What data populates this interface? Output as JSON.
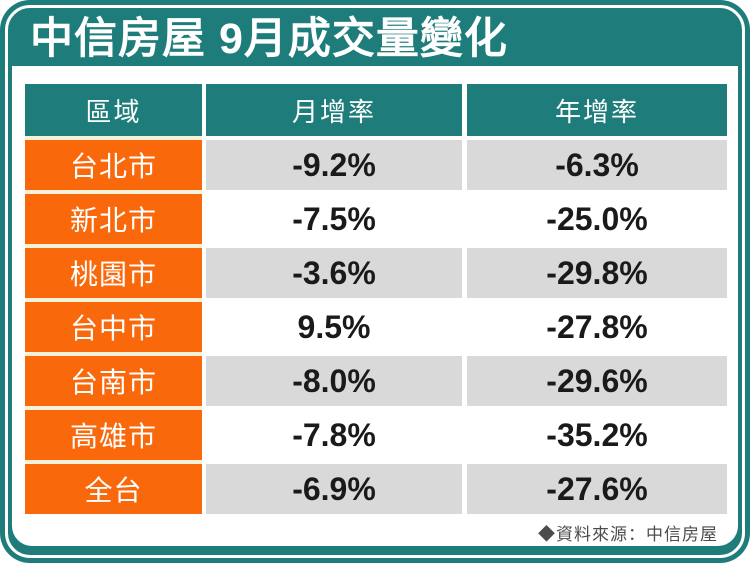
{
  "title": "中信房屋 9月成交量變化",
  "source_note": "◆資料來源：中信房屋",
  "colors": {
    "teal": "#1E7D7B",
    "orange": "#F9690C",
    "row_gray": "#D9D9D9",
    "gap_cream": "#F8F1D9",
    "text_dark": "#1A1A1A",
    "source_text": "#4C4C4C"
  },
  "table": {
    "headers": [
      "區域",
      "月增率",
      "年增率"
    ],
    "rows": [
      {
        "region": "台北市",
        "mom": "-9.2%",
        "yoy": "-6.3%"
      },
      {
        "region": "新北市",
        "mom": "-7.5%",
        "yoy": "-25.0%"
      },
      {
        "region": "桃園市",
        "mom": "-3.6%",
        "yoy": "-29.8%"
      },
      {
        "region": "台中市",
        "mom": "9.5%",
        "yoy": "-27.8%"
      },
      {
        "region": "台南市",
        "mom": "-8.0%",
        "yoy": "-29.6%"
      },
      {
        "region": "高雄市",
        "mom": "-7.8%",
        "yoy": "-35.2%"
      },
      {
        "region": "全台",
        "mom": "-6.9%",
        "yoy": "-27.6%"
      }
    ]
  },
  "chart_data": {
    "type": "table",
    "title": "中信房屋 9月成交量變化",
    "columns": [
      "區域",
      "月增率",
      "年增率"
    ],
    "units": "percent",
    "rows": [
      [
        "台北市",
        -9.2,
        -6.3
      ],
      [
        "新北市",
        -7.5,
        -25.0
      ],
      [
        "桃園市",
        -3.6,
        -29.8
      ],
      [
        "台中市",
        9.5,
        -27.8
      ],
      [
        "台南市",
        -8.0,
        -29.6
      ],
      [
        "高雄市",
        -7.8,
        -35.2
      ],
      [
        "全台",
        -6.9,
        -27.6
      ]
    ],
    "source": "中信房屋"
  }
}
